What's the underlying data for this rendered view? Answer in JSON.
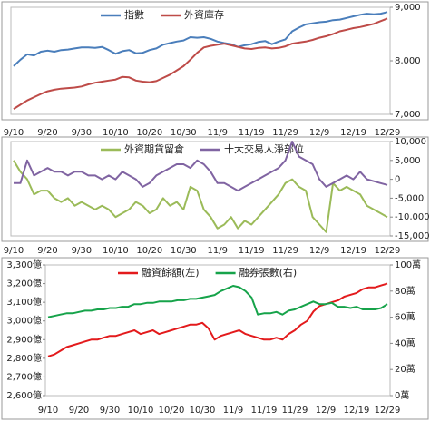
{
  "chart_data": [
    {
      "type": "line",
      "y_axis_position": "right",
      "categories": [
        "9/10",
        null,
        null,
        null,
        null,
        "9/20",
        null,
        null,
        null,
        null,
        "9/30",
        null,
        null,
        null,
        null,
        "10/10",
        null,
        null,
        null,
        null,
        "10/20",
        null,
        null,
        null,
        null,
        "10/30",
        null,
        null,
        null,
        null,
        "11/9",
        null,
        null,
        null,
        null,
        "11/19",
        null,
        null,
        null,
        null,
        "11/29",
        null,
        null,
        null,
        null,
        "12/9",
        null,
        null,
        null,
        null,
        "12/19",
        null,
        null,
        null,
        null,
        "12/29"
      ],
      "ylim": [
        7000,
        9000
      ],
      "yticks": [
        {
          "value": 7000,
          "label": "7,000"
        },
        {
          "value": 8000,
          "label": "8,000"
        },
        {
          "value": 9000,
          "label": "9,000"
        }
      ],
      "series": [
        {
          "name": "指數",
          "color": "#4a7ebb",
          "values": [
            7900,
            8020,
            8120,
            8100,
            8170,
            8190,
            8170,
            8200,
            8210,
            8230,
            8250,
            8250,
            8240,
            8260,
            8200,
            8130,
            8180,
            8200,
            8140,
            8150,
            8200,
            8230,
            8300,
            8330,
            8360,
            8380,
            8440,
            8430,
            8440,
            8410,
            8360,
            8330,
            8310,
            8260,
            8290,
            8310,
            8350,
            8370,
            8310,
            8360,
            8400,
            8550,
            8620,
            8680,
            8700,
            8720,
            8730,
            8760,
            8770,
            8800,
            8830,
            8860,
            8880,
            8870,
            8880,
            8910
          ]
        },
        {
          "name": "外資庫存",
          "color": "#be4b48",
          "values": [
            7100,
            7180,
            7260,
            7320,
            7380,
            7430,
            7460,
            7480,
            7490,
            7500,
            7520,
            7560,
            7590,
            7610,
            7630,
            7650,
            7700,
            7690,
            7630,
            7610,
            7600,
            7620,
            7680,
            7740,
            7820,
            7900,
            8020,
            8150,
            8250,
            8280,
            8300,
            8320,
            8290,
            8260,
            8230,
            8220,
            8240,
            8250,
            8230,
            8240,
            8270,
            8320,
            8340,
            8360,
            8390,
            8430,
            8460,
            8500,
            8550,
            8580,
            8610,
            8630,
            8660,
            8690,
            8740,
            8790
          ]
        }
      ]
    },
    {
      "type": "line",
      "y_axis_position": "right",
      "categories": [
        "9/10",
        null,
        null,
        null,
        null,
        "9/20",
        null,
        null,
        null,
        null,
        "9/30",
        null,
        null,
        null,
        null,
        "10/10",
        null,
        null,
        null,
        null,
        "10/20",
        null,
        null,
        null,
        null,
        "10/30",
        null,
        null,
        null,
        null,
        "11/9",
        null,
        null,
        null,
        null,
        "11/19",
        null,
        null,
        null,
        null,
        "11/29",
        null,
        null,
        null,
        null,
        "12/9",
        null,
        null,
        null,
        null,
        "12/19",
        null,
        null,
        null,
        null,
        "12/29"
      ],
      "ylim": [
        -15000,
        10000
      ],
      "yticks": [
        {
          "value": -15000,
          "label": "-15,000"
        },
        {
          "value": -10000,
          "label": "-10,000"
        },
        {
          "value": -5000,
          "label": "-5,000"
        },
        0,
        {
          "value": 5000,
          "label": "5,000"
        },
        {
          "value": 10000,
          "label": "10,000"
        }
      ],
      "series": [
        {
          "name": "外資期貨留倉",
          "color": "#9bbb59",
          "values": [
            5000,
            2000,
            0,
            -4000,
            -3000,
            -3000,
            -5000,
            -6000,
            -5000,
            -7000,
            -6000,
            -7000,
            -8000,
            -7000,
            -8000,
            -10000,
            -9000,
            -8000,
            -6000,
            -7000,
            -9000,
            -8000,
            -5000,
            -7000,
            -6000,
            -8000,
            -2000,
            -3000,
            -8000,
            -10000,
            -13000,
            -12000,
            -10000,
            -13000,
            -11000,
            -12000,
            -10000,
            -8000,
            -6000,
            -4000,
            -1000,
            0,
            -2000,
            -3000,
            -10000,
            -12000,
            -14000,
            -1000,
            -3000,
            -2000,
            -3000,
            -4000,
            -7000,
            -8000,
            -9000,
            -10000
          ]
        },
        {
          "name": "十大交易人淨部位",
          "color": "#8064a2",
          "values": [
            -1000,
            -1000,
            5000,
            1000,
            2000,
            3000,
            2000,
            2000,
            1000,
            2000,
            2000,
            1000,
            1000,
            0,
            1000,
            0,
            2000,
            1000,
            0,
            -2000,
            -1000,
            1000,
            2000,
            3000,
            4000,
            4000,
            3000,
            5000,
            4000,
            2000,
            -1000,
            -1000,
            -2000,
            -3000,
            -2000,
            -1000,
            0,
            1000,
            2000,
            3000,
            5000,
            10000,
            6000,
            5000,
            4000,
            0,
            -2000,
            -1000,
            0,
            1000,
            0,
            2000,
            0,
            -500,
            -1000,
            -1500
          ]
        }
      ]
    },
    {
      "type": "line",
      "y_axis_position": "left",
      "categories": [
        "9/10",
        null,
        null,
        null,
        null,
        "9/20",
        null,
        null,
        null,
        null,
        "9/30",
        null,
        null,
        null,
        null,
        "10/10",
        null,
        null,
        null,
        null,
        "10/20",
        null,
        null,
        null,
        null,
        "10/30",
        null,
        null,
        null,
        null,
        "11/9",
        null,
        null,
        null,
        null,
        "11/19",
        null,
        null,
        null,
        null,
        "11/29",
        null,
        null,
        null,
        null,
        "12/9",
        null,
        null,
        null,
        null,
        "12/19",
        null,
        null,
        null,
        null,
        "12/29"
      ],
      "ylim": [
        2600,
        3300
      ],
      "yticks": [
        {
          "value": 2600,
          "label": "2,600億"
        },
        {
          "value": 2700,
          "label": "2,700億"
        },
        {
          "value": 2800,
          "label": "2,800億"
        },
        {
          "value": 2900,
          "label": "2,900億"
        },
        {
          "value": 3000,
          "label": "3,000億"
        },
        {
          "value": 3100,
          "label": "3,100億"
        },
        {
          "value": 3200,
          "label": "3,200億"
        },
        {
          "value": 3300,
          "label": "3,300億"
        }
      ],
      "y2lim": [
        0,
        100
      ],
      "y2ticks": [
        {
          "value": 0,
          "label": "0萬"
        },
        {
          "value": 20,
          "label": "20萬"
        },
        {
          "value": 40,
          "label": "40萬"
        },
        {
          "value": 60,
          "label": "60萬"
        },
        {
          "value": 80,
          "label": "80萬"
        },
        {
          "value": 100,
          "label": "100萬"
        }
      ],
      "series": [
        {
          "name": "融資餘額(左)",
          "color": "#e31a1c",
          "values": [
            2810,
            2820,
            2840,
            2860,
            2870,
            2880,
            2890,
            2900,
            2900,
            2910,
            2920,
            2920,
            2930,
            2940,
            2950,
            2930,
            2940,
            2950,
            2930,
            2940,
            2950,
            2960,
            2970,
            2980,
            2980,
            2990,
            2960,
            2900,
            2920,
            2930,
            2940,
            2950,
            2930,
            2920,
            2910,
            2900,
            2900,
            2910,
            2900,
            2930,
            2950,
            2980,
            3000,
            3050,
            3080,
            3090,
            3100,
            3110,
            3130,
            3140,
            3150,
            3170,
            3180,
            3180,
            3190,
            3200
          ]
        },
        {
          "name": "融券張數(右)",
          "color": "#16a34a",
          "axis": "y2",
          "values": [
            60,
            61,
            62,
            63,
            63,
            64,
            65,
            65,
            66,
            66,
            67,
            67,
            68,
            68,
            70,
            70,
            71,
            71,
            72,
            72,
            72,
            73,
            73,
            74,
            74,
            75,
            76,
            77,
            80,
            82,
            84,
            83,
            80,
            75,
            62,
            63,
            63,
            64,
            62,
            65,
            66,
            68,
            70,
            72,
            70,
            70,
            71,
            68,
            68,
            67,
            68,
            66,
            66,
            66,
            67,
            70
          ]
        }
      ]
    }
  ]
}
